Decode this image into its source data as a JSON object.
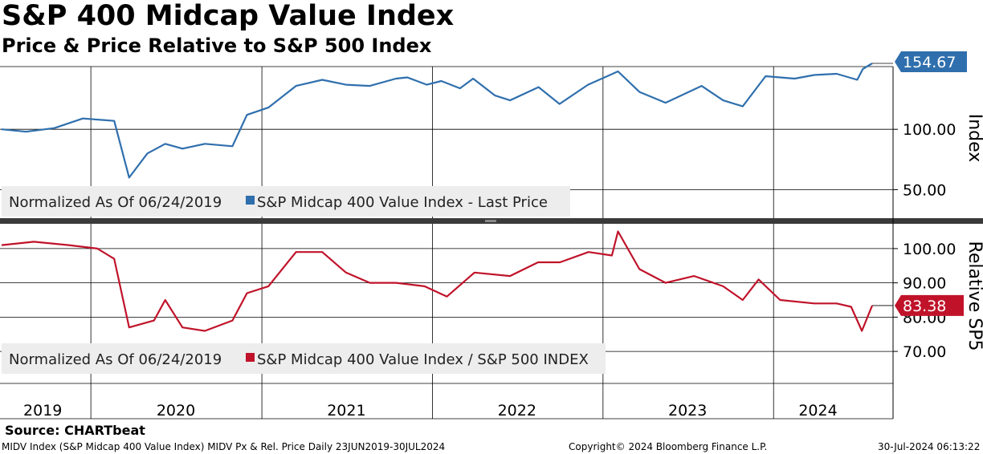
{
  "title": "S&P 400 Midcap Value Index",
  "subtitle": "Price & Price Relative to S&P 500 Index",
  "source": "Source: CHARTbeat",
  "footer": {
    "left": "MIDV Index (S&P Midcap 400 Value Index) MIDV Px & Rel. Price  Daily 23JUN2019-30JUL2024",
    "center": "Copyright© 2024 Bloomberg Finance L.P.",
    "right": "30-Jul-2024 06:13:22"
  },
  "colors": {
    "price": "#2f6fad",
    "relative": "#c0132a"
  },
  "chart_data": [
    {
      "type": "line",
      "panel": "top",
      "ylabel": "Index",
      "yticks": [
        50,
        100
      ],
      "ytick_labels": [
        "50.00",
        "100.00"
      ],
      "ylim": [
        27,
        152
      ],
      "grid": true,
      "legend_text": "Normalized As Of 06/24/2019",
      "series": [
        {
          "name": "S&P Midcap 400 Value Index - Last Price",
          "color": "#2f6fad",
          "last_value_label": "154.67",
          "x": [
            "2019-06-24",
            "2019-08-15",
            "2019-10-15",
            "2019-12-15",
            "2020-02-20",
            "2020-03-23",
            "2020-05-01",
            "2020-06-08",
            "2020-07-15",
            "2020-09-01",
            "2020-10-30",
            "2020-11-30",
            "2021-01-15",
            "2021-03-15",
            "2021-05-10",
            "2021-06-30",
            "2021-08-20",
            "2021-10-15",
            "2021-11-08",
            "2021-12-20",
            "2022-01-20",
            "2022-03-01",
            "2022-03-29",
            "2022-05-15",
            "2022-06-16",
            "2022-08-16",
            "2022-09-30",
            "2022-11-30",
            "2023-02-02",
            "2023-03-20",
            "2023-05-15",
            "2023-07-31",
            "2023-09-15",
            "2023-10-27",
            "2023-12-15",
            "2024-02-15",
            "2024-03-28",
            "2024-05-15",
            "2024-06-28",
            "2024-07-10",
            "2024-07-30"
          ],
          "values": [
            100,
            98,
            101,
            109,
            107,
            60,
            80,
            88,
            84,
            88,
            86,
            112,
            118,
            136,
            141,
            137,
            136,
            142,
            143,
            137,
            140,
            134,
            142,
            128,
            124,
            135,
            121,
            137,
            148,
            131,
            122,
            136,
            124,
            119,
            144,
            142,
            145,
            146,
            141,
            150,
            154.67
          ]
        }
      ]
    },
    {
      "type": "line",
      "panel": "bottom",
      "ylabel": "Relative SP5",
      "yticks": [
        70,
        80,
        90,
        100
      ],
      "ytick_labels": [
        "70.00",
        "80.00",
        "90.00",
        "100.00"
      ],
      "ylim": [
        63,
        107
      ],
      "grid": true,
      "legend_text": "Normalized As Of 06/24/2019",
      "series": [
        {
          "name": "S&P Midcap 400 Value Index / S&P 500 INDEX",
          "color": "#c0132a",
          "last_value_label": "83.38",
          "x": [
            "2019-06-24",
            "2019-09-01",
            "2019-11-15",
            "2020-01-15",
            "2020-02-20",
            "2020-03-23",
            "2020-05-15",
            "2020-06-08",
            "2020-07-15",
            "2020-09-01",
            "2020-10-30",
            "2020-11-30",
            "2021-01-15",
            "2021-03-15",
            "2021-05-10",
            "2021-06-30",
            "2021-08-20",
            "2021-10-15",
            "2021-12-15",
            "2022-02-01",
            "2022-04-01",
            "2022-06-16",
            "2022-08-15",
            "2022-10-01",
            "2022-12-01",
            "2023-01-20",
            "2023-02-02",
            "2023-03-20",
            "2023-05-15",
            "2023-07-15",
            "2023-09-15",
            "2023-10-27",
            "2023-11-30",
            "2024-01-15",
            "2024-03-28",
            "2024-05-15",
            "2024-06-15",
            "2024-07-08",
            "2024-07-30"
          ],
          "values": [
            101,
            102,
            101,
            100,
            97,
            77,
            79,
            85,
            77,
            76,
            79,
            87,
            89,
            99,
            99,
            93,
            90,
            90,
            89,
            86,
            93,
            92,
            96,
            96,
            99,
            98,
            105,
            94,
            90,
            92,
            89,
            85,
            91,
            85,
            84,
            84,
            83,
            76,
            83.38
          ]
        }
      ]
    }
  ],
  "x_axis": {
    "labels": [
      "2019",
      "2020",
      "2021",
      "2022",
      "2023",
      "2024"
    ]
  }
}
